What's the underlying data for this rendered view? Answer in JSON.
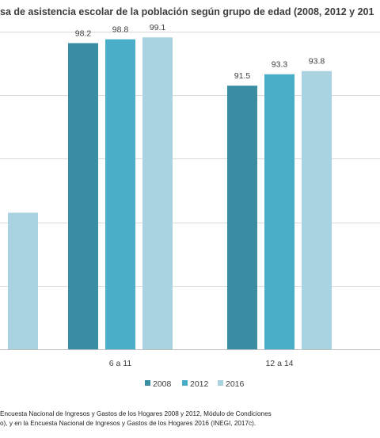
{
  "chart_data": {
    "type": "bar",
    "title": "sa de asistencia escolar de la población según grupo de edad (2008, 2012 y 201",
    "categories": [
      "",
      "6 a 11",
      "12 a 14"
    ],
    "series": [
      {
        "name": "2008",
        "color": "#3a8ea3",
        "values": [
          null,
          98.2,
          91.5
        ]
      },
      {
        "name": "2012",
        "color": "#4aaec9",
        "values": [
          null,
          98.8,
          93.3
        ]
      },
      {
        "name": "2016",
        "color": "#a9d3e0",
        "values": [
          71.5,
          99.1,
          93.8
        ]
      }
    ],
    "data_labels": [
      [
        "",
        "98.2",
        "91.5"
      ],
      [
        "",
        "98.8",
        "93.3"
      ],
      [
        "",
        "99.1",
        "93.8"
      ]
    ],
    "ylim": [
      50,
      100
    ],
    "grid": true,
    "legend_position": "bottom",
    "xlabel": "",
    "ylabel": ""
  },
  "source_lines": [
    "Encuesta Nacional de Ingresos y Gastos de los Hogares 2008 y 2012, Módulo de Condiciones",
    "o), y en la Encuesta Nacional de Ingresos y Gastos de los Hogares 2016 (INEGI, 2017c)."
  ]
}
